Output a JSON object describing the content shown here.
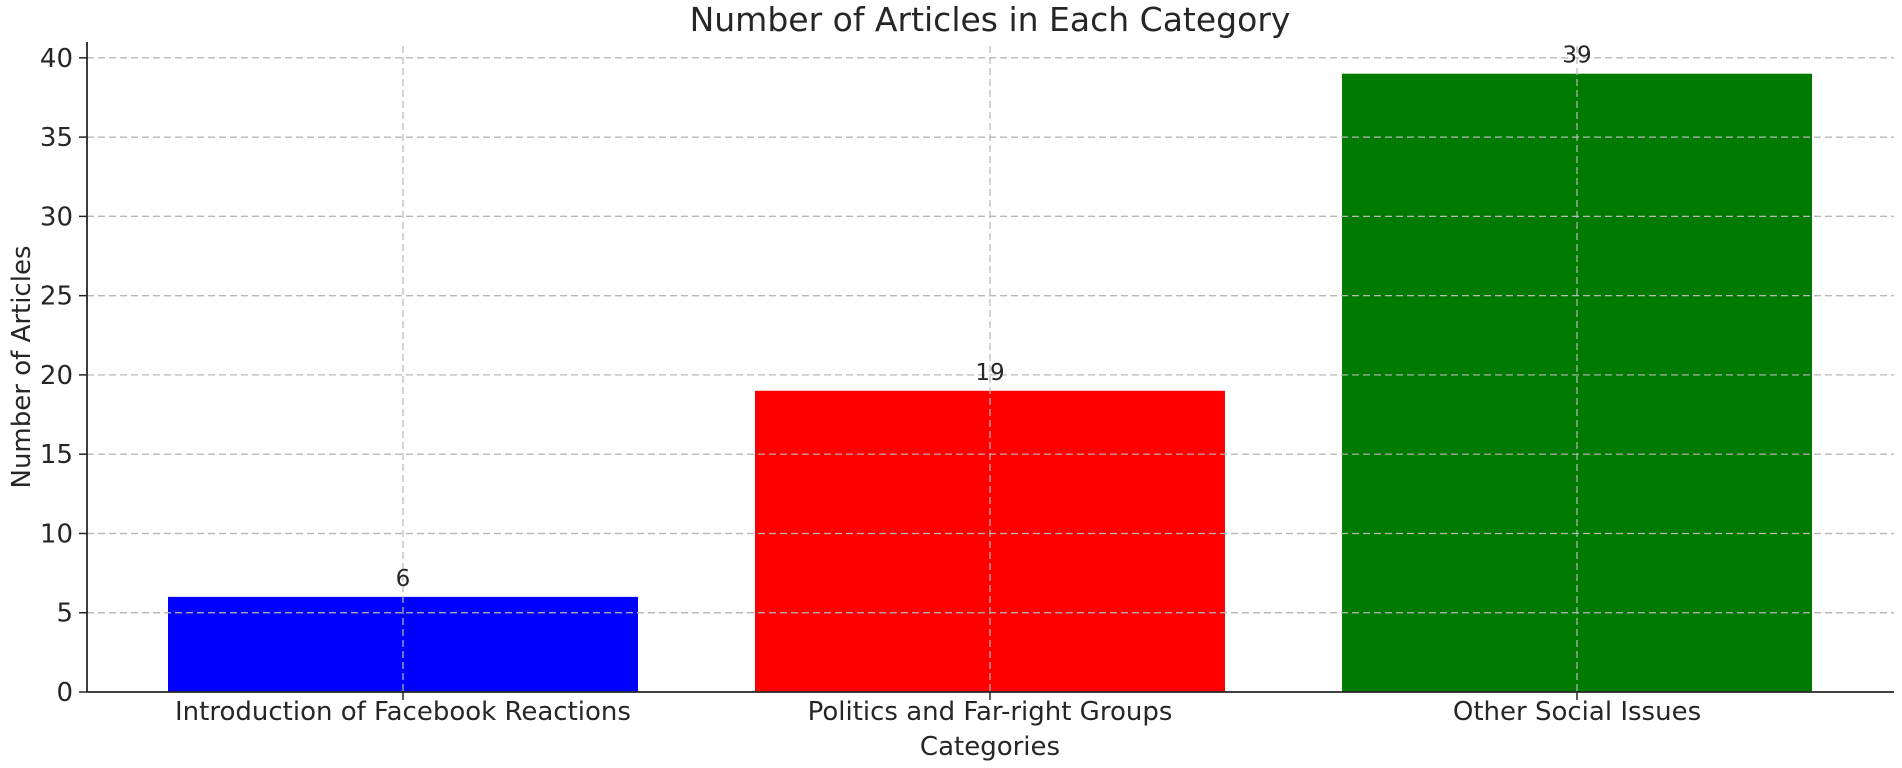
{
  "chart_data": {
    "type": "bar",
    "title": "Number of Articles in Each Category",
    "xlabel": "Categories",
    "ylabel": "Number of Articles",
    "categories": [
      "Introduction of Facebook Reactions",
      "Politics and Far-right Groups",
      "Other Social Issues"
    ],
    "values": [
      6,
      19,
      39
    ],
    "data_labels": [
      "6",
      "19",
      "39"
    ],
    "colors": [
      "#0000ff",
      "#ff0000",
      "#007a00"
    ],
    "ylim": [
      0,
      41
    ],
    "yticks": [
      0,
      5,
      10,
      15,
      20,
      25,
      30,
      35,
      40
    ],
    "ytick_labels": [
      "0",
      "5",
      "10",
      "15",
      "20",
      "25",
      "30",
      "35",
      "40"
    ],
    "grid": true,
    "legend": "none"
  }
}
